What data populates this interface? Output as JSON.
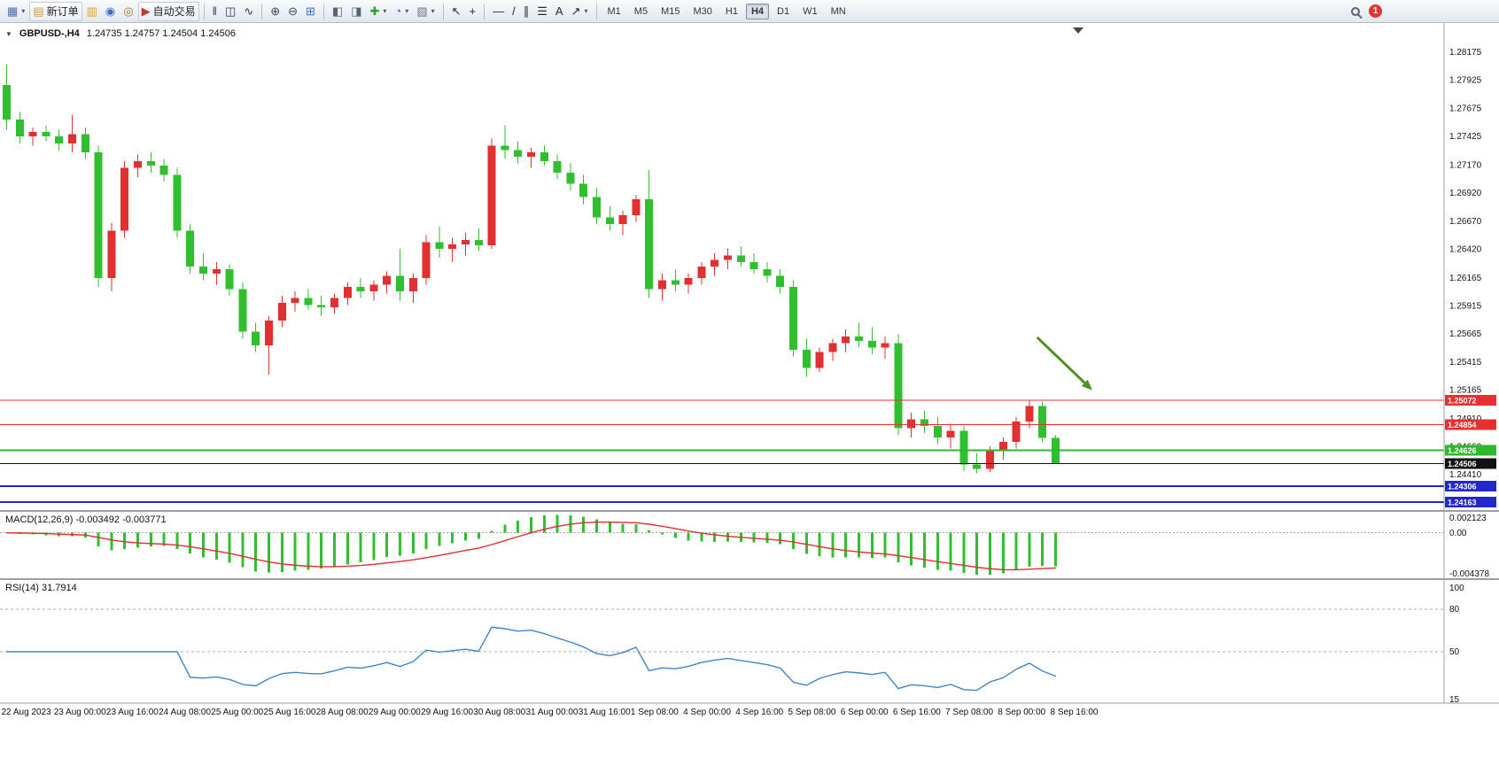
{
  "window": {
    "symbol_label": "GBPUSD-,H4",
    "ohlc_text": "1.24735 1.24757 1.24504 1.24506"
  },
  "toolbar": {
    "items": [
      {
        "name": "new-chart-button",
        "icon": "new-chart-icon",
        "glyph": "▦",
        "color": "#4a6fa5",
        "dropdown": true
      },
      {
        "name": "new-order-button",
        "icon": "new-order-icon",
        "glyph": "▤",
        "color": "#c79a3a",
        "label": "新订单"
      },
      {
        "name": "market-watch-button",
        "icon": "market-watch-icon",
        "glyph": "▥",
        "color": "#d9a41e"
      },
      {
        "name": "data-window-button",
        "icon": "data-window-icon",
        "glyph": "◉",
        "color": "#3a6fc4"
      },
      {
        "name": "strategy-tester-button",
        "icon": "strategy-tester-icon",
        "glyph": "◎",
        "color": "#a8742f"
      },
      {
        "name": "autotrading-button",
        "icon": "autotrading-icon",
        "glyph": "▶",
        "color": "#c0392b",
        "label": "自动交易"
      },
      {
        "sep": true
      },
      {
        "name": "bar-chart-button",
        "icon": "bar-chart-icon",
        "glyph": "‖",
        "color": "#2c3e50"
      },
      {
        "name": "candlestick-chart-button",
        "icon": "candlestick-chart-icon",
        "glyph": "◫",
        "color": "#2c3e50"
      },
      {
        "name": "line-chart-button",
        "icon": "line-chart-icon",
        "glyph": "∿",
        "color": "#2c3e50"
      },
      {
        "sep": true
      },
      {
        "name": "zoom-in-button",
        "icon": "zoom-in-icon",
        "glyph": "⊕",
        "color": "#34495e"
      },
      {
        "name": "zoom-out-button",
        "icon": "zoom-out-icon",
        "glyph": "⊖",
        "color": "#34495e"
      },
      {
        "name": "tile-windows-button",
        "icon": "tile-windows-icon",
        "glyph": "⊞",
        "color": "#3a6fc4"
      },
      {
        "sep": true
      },
      {
        "name": "indicator-window-button",
        "icon": "indicator-window-icon",
        "glyph": "◧",
        "color": "#566573"
      },
      {
        "name": "object-list-button",
        "icon": "object-list-icon",
        "glyph": "◨",
        "color": "#566573"
      },
      {
        "name": "indicators-button",
        "icon": "indicators-icon",
        "glyph": "✚",
        "color": "#27a327",
        "dropdown": true
      },
      {
        "name": "periods-button",
        "icon": "periods-icon",
        "glyph": "◔",
        "color": "#3a6fc4",
        "dropdown": true
      },
      {
        "name": "templates-button",
        "icon": "templates-icon",
        "glyph": "▧",
        "color": "#6b7683",
        "dropdown": true
      },
      {
        "sep": true
      },
      {
        "name": "cursor-button",
        "icon": "cursor-icon",
        "glyph": "↖",
        "color": "#1c2833"
      },
      {
        "name": "crosshair-button",
        "icon": "crosshair-icon",
        "glyph": "+",
        "color": "#1c2833"
      },
      {
        "sep": true
      },
      {
        "name": "horizontal-line-button",
        "icon": "horizontal-line-icon",
        "glyph": "—",
        "color": "#1c2833"
      },
      {
        "name": "trendline-button",
        "icon": "trendline-icon",
        "glyph": "/",
        "color": "#1c2833"
      },
      {
        "name": "equidistant-channel-button",
        "icon": "equidistant-channel-icon",
        "glyph": "∥",
        "color": "#1c2833"
      },
      {
        "name": "fibonacci-button",
        "icon": "fibonacci-icon",
        "glyph": "☰",
        "color": "#1c2833"
      },
      {
        "name": "text-button",
        "icon": "text-icon",
        "glyph": "A",
        "color": "#1c2833"
      },
      {
        "name": "arrows-button",
        "icon": "arrows-icon",
        "glyph": "↗",
        "color": "#1c2833",
        "dropdown": true
      },
      {
        "sep": true
      }
    ],
    "timeframes": [
      "M1",
      "M5",
      "M15",
      "M30",
      "H1",
      "H4",
      "D1",
      "W1",
      "MN"
    ],
    "active_timeframe": "H4",
    "badge_count": "1"
  },
  "panes": {
    "macd_label": "MACD(12,26,9) -0.003492 -0.003771",
    "rsi_label": "RSI(14) 31.7914"
  },
  "chart_data": [
    {
      "type": "candlestick",
      "title": "GBPUSD-,H4",
      "symbol": "GBPUSD",
      "timeframe": "H4",
      "current_ohlc": {
        "open": 1.24735,
        "high": 1.24757,
        "low": 1.24504,
        "close": 1.24506
      },
      "ylim": [
        1.241,
        1.284
      ],
      "bull_color": "#e03030",
      "bear_color": "#2fbf2f",
      "price_axis_ticks": [
        "1.28175",
        "1.27925",
        "1.27675",
        "1.27425",
        "1.27170",
        "1.26920",
        "1.26670",
        "1.26420",
        "1.26165",
        "1.25915",
        "1.25665",
        "1.25415",
        "1.25165",
        "1.24910",
        "1.24660",
        "1.24410"
      ],
      "candles_ohlc": [
        [
          1.2788,
          1.2806,
          1.2748,
          1.2757
        ],
        [
          1.2757,
          1.2764,
          1.2736,
          1.2742
        ],
        [
          1.2742,
          1.275,
          1.2734,
          1.2746
        ],
        [
          1.2746,
          1.2752,
          1.2738,
          1.2742
        ],
        [
          1.2742,
          1.2748,
          1.273,
          1.2736
        ],
        [
          1.2736,
          1.2761,
          1.2728,
          1.2744
        ],
        [
          1.2744,
          1.275,
          1.2722,
          1.2728
        ],
        [
          1.2728,
          1.2734,
          1.2608,
          1.2616
        ],
        [
          1.2616,
          1.2665,
          1.2604,
          1.2658
        ],
        [
          1.2658,
          1.272,
          1.2652,
          1.2714
        ],
        [
          1.2714,
          1.2726,
          1.2706,
          1.272
        ],
        [
          1.272,
          1.2728,
          1.271,
          1.2716
        ],
        [
          1.2716,
          1.2722,
          1.2702,
          1.2708
        ],
        [
          1.2708,
          1.2714,
          1.2652,
          1.2658
        ],
        [
          1.2658,
          1.2664,
          1.262,
          1.2626
        ],
        [
          1.2626,
          1.2638,
          1.2614,
          1.262
        ],
        [
          1.262,
          1.263,
          1.261,
          1.2624
        ],
        [
          1.2624,
          1.2628,
          1.26,
          1.2606
        ],
        [
          1.2606,
          1.2612,
          1.2562,
          1.2568
        ],
        [
          1.2568,
          1.2576,
          1.255,
          1.2556
        ],
        [
          1.2556,
          1.2582,
          1.253,
          1.2578
        ],
        [
          1.2578,
          1.26,
          1.2572,
          1.2594
        ],
        [
          1.2594,
          1.2604,
          1.2586,
          1.2598
        ],
        [
          1.2598,
          1.2606,
          1.2588,
          1.2592
        ],
        [
          1.2592,
          1.26,
          1.2582,
          1.259
        ],
        [
          1.259,
          1.2602,
          1.2584,
          1.2598
        ],
        [
          1.2598,
          1.2612,
          1.2592,
          1.2608
        ],
        [
          1.2608,
          1.2616,
          1.2598,
          1.2604
        ],
        [
          1.2604,
          1.2614,
          1.2596,
          1.261
        ],
        [
          1.261,
          1.2622,
          1.2602,
          1.2618
        ],
        [
          1.2618,
          1.2642,
          1.2596,
          1.2604
        ],
        [
          1.2604,
          1.262,
          1.2594,
          1.2616
        ],
        [
          1.2616,
          1.2654,
          1.261,
          1.2648
        ],
        [
          1.2648,
          1.2662,
          1.2634,
          1.2642
        ],
        [
          1.2642,
          1.2652,
          1.263,
          1.2646
        ],
        [
          1.2646,
          1.2656,
          1.2636,
          1.265
        ],
        [
          1.265,
          1.266,
          1.264,
          1.2645
        ],
        [
          1.2645,
          1.274,
          1.2642,
          1.2734
        ],
        [
          1.2734,
          1.2752,
          1.2722,
          1.273
        ],
        [
          1.273,
          1.2738,
          1.2718,
          1.2724
        ],
        [
          1.2724,
          1.2732,
          1.2714,
          1.2728
        ],
        [
          1.2728,
          1.2734,
          1.2716,
          1.272
        ],
        [
          1.272,
          1.2726,
          1.2704,
          1.271
        ],
        [
          1.271,
          1.2718,
          1.2694,
          1.27
        ],
        [
          1.27,
          1.2708,
          1.2682,
          1.2688
        ],
        [
          1.2688,
          1.2696,
          1.2664,
          1.267
        ],
        [
          1.267,
          1.268,
          1.2658,
          1.2664
        ],
        [
          1.2664,
          1.2676,
          1.2654,
          1.2672
        ],
        [
          1.2672,
          1.269,
          1.2666,
          1.2686
        ],
        [
          1.2686,
          1.2712,
          1.2598,
          1.2606
        ],
        [
          1.2606,
          1.262,
          1.2596,
          1.2614
        ],
        [
          1.2614,
          1.2624,
          1.2604,
          1.261
        ],
        [
          1.261,
          1.262,
          1.2602,
          1.2616
        ],
        [
          1.2616,
          1.263,
          1.261,
          1.2626
        ],
        [
          1.2626,
          1.2638,
          1.2618,
          1.2632
        ],
        [
          1.2632,
          1.2642,
          1.2624,
          1.2636
        ],
        [
          1.2636,
          1.2644,
          1.2626,
          1.263
        ],
        [
          1.263,
          1.2638,
          1.262,
          1.2624
        ],
        [
          1.2624,
          1.263,
          1.2612,
          1.2618
        ],
        [
          1.2618,
          1.2624,
          1.2602,
          1.2608
        ],
        [
          1.2608,
          1.2614,
          1.2546,
          1.2552
        ],
        [
          1.2552,
          1.2562,
          1.2528,
          1.2536
        ],
        [
          1.2536,
          1.2554,
          1.2532,
          1.255
        ],
        [
          1.255,
          1.2562,
          1.2542,
          1.2558
        ],
        [
          1.2558,
          1.257,
          1.255,
          1.2564
        ],
        [
          1.2564,
          1.2576,
          1.2554,
          1.256
        ],
        [
          1.256,
          1.2572,
          1.2548,
          1.2554
        ],
        [
          1.2554,
          1.2564,
          1.2544,
          1.2558
        ],
        [
          1.2558,
          1.2566,
          1.2476,
          1.2482
        ],
        [
          1.2482,
          1.2496,
          1.2474,
          1.249
        ],
        [
          1.249,
          1.2498,
          1.2478,
          1.2484
        ],
        [
          1.2484,
          1.2492,
          1.2468,
          1.2474
        ],
        [
          1.2474,
          1.2486,
          1.2464,
          1.248
        ],
        [
          1.248,
          1.2484,
          1.2444,
          1.245
        ],
        [
          1.245,
          1.246,
          1.2442,
          1.2446
        ],
        [
          1.2446,
          1.2466,
          1.2443,
          1.2462
        ],
        [
          1.2462,
          1.2474,
          1.2454,
          1.247
        ],
        [
          1.247,
          1.2492,
          1.2464,
          1.2488
        ],
        [
          1.2488,
          1.2507,
          1.2482,
          1.2502
        ],
        [
          1.2502,
          1.2506,
          1.247,
          1.24735
        ],
        [
          1.24735,
          1.24757,
          1.24504,
          1.24506
        ]
      ],
      "time_labels": [
        {
          "bar": 0,
          "label": "22 Aug 2023"
        },
        {
          "bar": 4,
          "label": "23 Aug 00:00"
        },
        {
          "bar": 8,
          "label": "23 Aug 16:00"
        },
        {
          "bar": 12,
          "label": "24 Aug 08:00"
        },
        {
          "bar": 16,
          "label": "25 Aug 00:00"
        },
        {
          "bar": 20,
          "label": "25 Aug 16:00"
        },
        {
          "bar": 24,
          "label": "28 Aug 08:00"
        },
        {
          "bar": 28,
          "label": "29 Aug 00:00"
        },
        {
          "bar": 32,
          "label": "29 Aug 16:00"
        },
        {
          "bar": 36,
          "label": "30 Aug 08:00"
        },
        {
          "bar": 40,
          "label": "31 Aug 00:00"
        },
        {
          "bar": 44,
          "label": "31 Aug 16:00"
        },
        {
          "bar": 48,
          "label": "1 Sep 08:00"
        },
        {
          "bar": 52,
          "label": "4 Sep 00:00"
        },
        {
          "bar": 56,
          "label": "4 Sep 16:00"
        },
        {
          "bar": 60,
          "label": "5 Sep 08:00"
        },
        {
          "bar": 64,
          "label": "6 Sep 00:00"
        },
        {
          "bar": 68,
          "label": "6 Sep 16:00"
        },
        {
          "bar": 72,
          "label": "7 Sep 08:00"
        },
        {
          "bar": 76,
          "label": "8 Sep 00:00"
        },
        {
          "bar": 80,
          "label": "8 Sep 16:00"
        }
      ],
      "hlines": [
        {
          "price": 1.25072,
          "label": "1.25072",
          "color": "#e83030",
          "width": 1
        },
        {
          "price": 1.24854,
          "label": "1.24854",
          "color": "#e83030",
          "width": 1
        },
        {
          "price": 1.24626,
          "label": "1.24626",
          "color": "#2db82d",
          "width": 2
        },
        {
          "price": 1.24506,
          "label": "1.24506",
          "color": "#111111",
          "width": 1,
          "role": "current-price"
        },
        {
          "price": 1.24306,
          "label": "1.24306",
          "color": "#2228cc",
          "width": 2
        },
        {
          "price": 1.24163,
          "label": "1.24163",
          "color": "#2228cc",
          "width": 2
        }
      ],
      "annotation_arrow": {
        "from_bar": 78.6,
        "from_price": 1.2563,
        "to_bar": 82.8,
        "to_price": 1.2516,
        "color": "#4e8f22"
      }
    },
    {
      "type": "macd-histogram",
      "label": "MACD(12,26,9)",
      "params": [
        12,
        26,
        9
      ],
      "macd_value": -0.003492,
      "signal_value": -0.003771,
      "axis_ticks": [
        "0.002123",
        "0.00",
        "-0.004378"
      ],
      "histogram_color": "#2fbf2f",
      "signal_color": "#e03030",
      "derived_from": "candles_ohlc closes"
    },
    {
      "type": "rsi-line",
      "label": "RSI(14)",
      "period": 14,
      "value": 31.7914,
      "axis_ticks": [
        "100",
        "80",
        "50",
        "15"
      ],
      "levels": [
        80,
        50
      ],
      "ylim": [
        15,
        100
      ],
      "line_color": "#3f86c9",
      "derived_from": "candles_ohlc closes"
    }
  ]
}
